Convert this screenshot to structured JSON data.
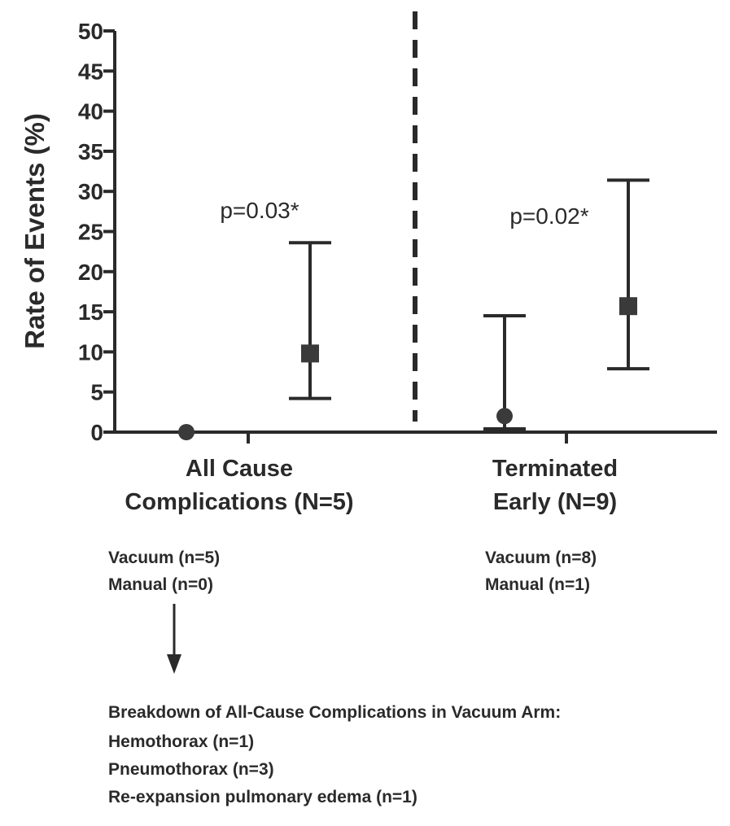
{
  "chart_data": {
    "type": "scatter",
    "ylabel": "Rate of Events (%)",
    "ylim": [
      0,
      50
    ],
    "yticks": [
      0,
      5,
      10,
      15,
      20,
      25,
      30,
      35,
      40,
      45,
      50
    ],
    "grid": false,
    "divider": "dashed vertical line between groups",
    "groups": [
      {
        "label_lines": [
          "All Cause",
          "Complications (N=5)"
        ],
        "p_value": "p=0.03*",
        "points": [
          {
            "arm": "Manual",
            "marker": "circle",
            "value": 0,
            "ci": null
          },
          {
            "arm": "Vacuum",
            "marker": "square",
            "value": 9.8,
            "ci": [
              4.2,
              23.6
            ]
          }
        ],
        "counts": [
          "Vacuum (n=5)",
          "Manual (n=0)"
        ]
      },
      {
        "label_lines": [
          "Terminated",
          "Early (N=9)"
        ],
        "p_value": "p=0.02*",
        "points": [
          {
            "arm": "Manual",
            "marker": "circle",
            "value": 2,
            "ci": [
              0.4,
              14.5
            ]
          },
          {
            "arm": "Vacuum",
            "marker": "square",
            "value": 15.7,
            "ci": [
              7.9,
              31.4
            ]
          }
        ],
        "counts": [
          "Vacuum (n=8)",
          "Manual (n=1)"
        ]
      }
    ]
  },
  "breakdown": {
    "title": "Breakdown of All-Cause Complications in Vacuum Arm:",
    "items": [
      "Hemothorax (n=1)",
      "Pneumothorax (n=3)",
      "Re-expansion pulmonary edema (n=1)"
    ]
  },
  "colors": {
    "ink": "#2a2a2a",
    "marker": "#3a3a3a"
  }
}
